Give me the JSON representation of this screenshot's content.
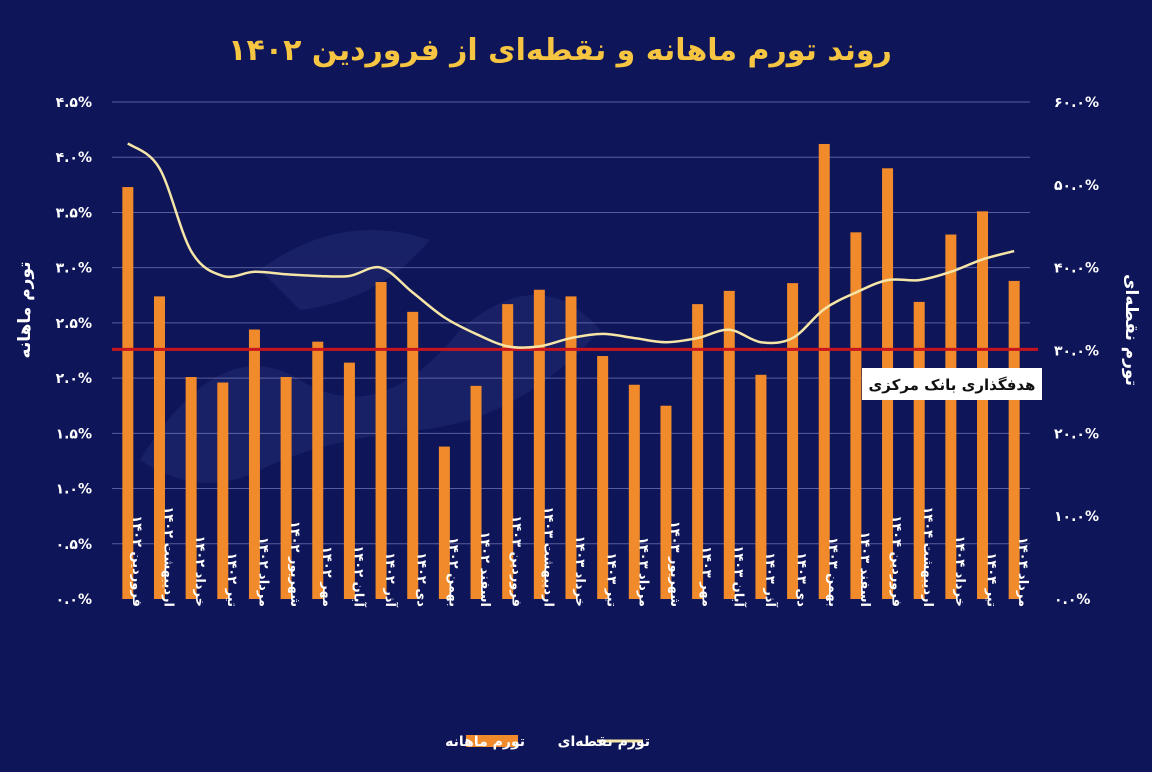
{
  "chart_data": {
    "type": "bar",
    "title": "روند تورم ماهانه و نقطه‌ای از فروردین ۱۴۰۲",
    "ylabel_left": "تورم ماهانه",
    "ylabel_right": "تورم نقطه‌ای",
    "y_left_ticks": [
      "۰.۰%",
      "۰.۵%",
      "۱.۰%",
      "۱.۵%",
      "۲.۰%",
      "۲.۵%",
      "۳.۰%",
      "۳.۵%",
      "۴.۰%",
      "۴.۵%"
    ],
    "y_right_ticks": [
      "۰.۰%",
      "۱۰.۰%",
      "۲۰.۰%",
      "۳۰.۰%",
      "۴۰.۰%",
      "۵۰.۰%",
      "۶۰.۰%"
    ],
    "ylim_left": [
      0,
      4.5
    ],
    "ylim_right": [
      0,
      60
    ],
    "grid": true,
    "legend_position": "bottom-center",
    "categories": [
      "فروردین ۱۴۰۲",
      "اردیبهشت ۱۴۰۲",
      "خرداد ۱۴۰۲",
      "تیر ۱۴۰۲",
      "مرداد ۱۴۰۲",
      "شهریور ۱۴۰۲",
      "مهر ۱۴۰۲",
      "آبان ۱۴۰۲",
      "آذر ۱۴۰۲",
      "دی ۱۴۰۲",
      "بهمن ۱۴۰۲",
      "اسفند ۱۴۰۲",
      "فروردین ۱۴۰۳",
      "اردیبهشت ۱۴۰۳",
      "خرداد ۱۴۰۳",
      "تیر ۱۴۰۳",
      "مرداد ۱۴۰۳",
      "شهریور ۱۴۰۳",
      "مهر ۱۴۰۳",
      "آبان ۱۴۰۳",
      "آذر ۱۴۰۳",
      "دی ۱۴۰۳",
      "بهمن ۱۴۰۳",
      "اسفند ۱۴۰۳",
      "فروردین ۱۴۰۴",
      "اردیبهشت ۱۴۰۴",
      "خرداد ۱۴۰۴",
      "تیر ۱۴۰۴",
      "مرداد ۱۴۰۴"
    ],
    "series": [
      {
        "name": "تورم ماهانه",
        "type": "bar",
        "axis": "left",
        "color": "#f08a2a",
        "values": [
          3.73,
          2.74,
          2.01,
          1.96,
          2.44,
          2.01,
          2.33,
          2.14,
          2.87,
          2.6,
          1.38,
          1.93,
          2.67,
          2.8,
          2.74,
          2.2,
          1.94,
          1.75,
          2.67,
          2.79,
          2.03,
          2.86,
          4.12,
          3.32,
          3.9,
          2.69,
          3.3,
          3.51,
          2.88
        ]
      },
      {
        "name": "تورم نقطه‌ای",
        "type": "line",
        "axis": "right",
        "color": "#f5e6a8",
        "values": [
          55.0,
          52.0,
          42.0,
          39.0,
          39.5,
          39.2,
          39.0,
          39.0,
          40.0,
          37.0,
          34.0,
          32.0,
          30.5,
          30.5,
          31.5,
          32.0,
          31.5,
          31.0,
          31.5,
          32.5,
          31.0,
          31.5,
          35.0,
          37.0,
          38.5,
          38.5,
          39.5,
          41.0,
          42.0
        ]
      }
    ],
    "reference_line": {
      "label": "هدفگذاری بانک مرکزی",
      "axis": "left",
      "value": 2.26,
      "color": "#c8141e"
    }
  }
}
